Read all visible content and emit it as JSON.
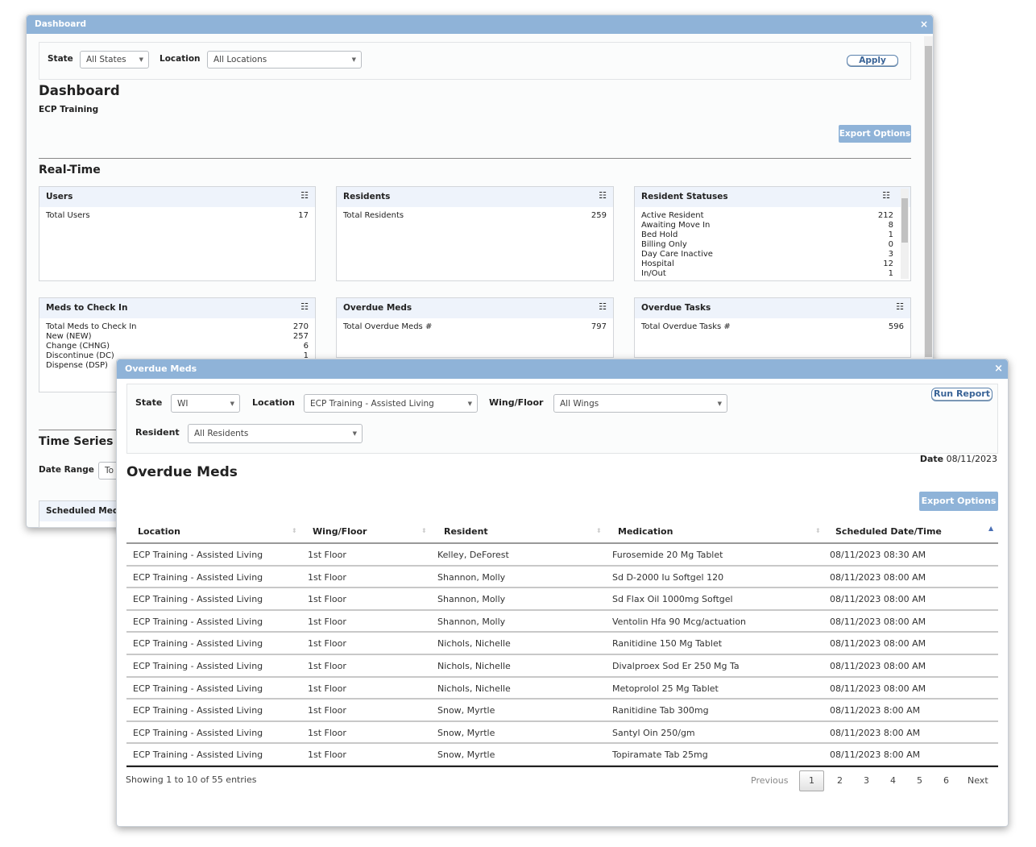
{
  "dashboard": {
    "title": "Dashboard",
    "close": "×",
    "filters": {
      "state_label": "State",
      "state_value": "All States",
      "location_label": "Location",
      "location_value": "All Locations",
      "apply": "Apply"
    },
    "heading": "Dashboard",
    "subheading": "ECP Training",
    "export": "Export Options",
    "realtime": "Real-Time",
    "cards": [
      {
        "title": "Users",
        "rows": [
          {
            "label": "Total Users",
            "value": "17"
          }
        ]
      },
      {
        "title": "Residents",
        "rows": [
          {
            "label": "Total Residents",
            "value": "259"
          }
        ]
      },
      {
        "title": "Resident Statuses",
        "rows": [
          {
            "label": "Active Resident",
            "value": "212"
          },
          {
            "label": "Awaiting Move In",
            "value": "8"
          },
          {
            "label": "Bed Hold",
            "value": "1"
          },
          {
            "label": "Billing Only",
            "value": "0"
          },
          {
            "label": "Day Care Inactive",
            "value": "3"
          },
          {
            "label": "Hospital",
            "value": "12"
          },
          {
            "label": "In/Out",
            "value": "1"
          }
        ]
      },
      {
        "title": "Meds to Check In",
        "rows": [
          {
            "label": "Total Meds to Check In",
            "value": "270"
          },
          {
            "label": "New (NEW)",
            "value": "257"
          },
          {
            "label": "Change (CHNG)",
            "value": "6"
          },
          {
            "label": "Discontinue (DC)",
            "value": "1"
          },
          {
            "label": "Dispense (DSP)",
            "value": ""
          }
        ]
      },
      {
        "title": "Overdue Meds",
        "rows": [
          {
            "label": "Total Overdue Meds #",
            "value": "797"
          }
        ]
      },
      {
        "title": "Overdue Tasks",
        "rows": [
          {
            "label": "Total Overdue Tasks #",
            "value": "596"
          }
        ]
      }
    ],
    "time_series": "Time Series",
    "date_range_label": "Date Range",
    "date_range_value": "To",
    "scheduled_card": "Scheduled Medi"
  },
  "modal": {
    "title": "Overdue Meds",
    "close": "×",
    "filters": {
      "state_label": "State",
      "state_value": "WI",
      "location_label": "Location",
      "location_value": "ECP Training - Assisted Living",
      "wing_label": "Wing/Floor",
      "wing_value": "All Wings",
      "resident_label": "Resident",
      "resident_value": "All Residents",
      "run": "Run Report"
    },
    "date_label": "Date",
    "date_value": "08/11/2023",
    "heading": "Overdue Meds",
    "export": "Export Options",
    "columns": [
      "Location",
      "Wing/Floor",
      "Resident",
      "Medication",
      "Scheduled Date/Time"
    ],
    "rows": [
      [
        "ECP Training - Assisted Living",
        "1st Floor",
        "Kelley, DeForest",
        "Furosemide 20 Mg Tablet",
        "08/11/2023 08:30 AM"
      ],
      [
        "ECP Training - Assisted Living",
        "1st Floor",
        "Shannon, Molly",
        "Sd D-2000 Iu Softgel 120",
        "08/11/2023 08:00 AM"
      ],
      [
        "ECP Training - Assisted Living",
        "1st Floor",
        "Shannon, Molly",
        "Sd Flax Oil 1000mg Softgel",
        "08/11/2023 08:00 AM"
      ],
      [
        "ECP Training - Assisted Living",
        "1st Floor",
        "Shannon, Molly",
        "Ventolin Hfa 90 Mcg/actuation",
        "08/11/2023 08:00 AM"
      ],
      [
        "ECP Training - Assisted Living",
        "1st Floor",
        "Nichols, Nichelle",
        "Ranitidine 150 Mg Tablet",
        "08/11/2023 08:00 AM"
      ],
      [
        "ECP Training - Assisted Living",
        "1st Floor",
        "Nichols, Nichelle",
        "Divalproex Sod Er 250 Mg Ta",
        "08/11/2023 08:00 AM"
      ],
      [
        "ECP Training - Assisted Living",
        "1st Floor",
        "Nichols, Nichelle",
        "Metoprolol 25 Mg Tablet",
        "08/11/2023 08:00 AM"
      ],
      [
        "ECP Training - Assisted Living",
        "1st Floor",
        "Snow, Myrtle",
        "Ranitidine Tab 300mg",
        "08/11/2023 8:00 AM"
      ],
      [
        "ECP Training - Assisted Living",
        "1st Floor",
        "Snow, Myrtle",
        "Santyl Oin 250/gm",
        "08/11/2023 8:00 AM"
      ],
      [
        "ECP Training - Assisted Living",
        "1st Floor",
        "Snow, Myrtle",
        "Topiramate Tab 25mg",
        "08/11/2023 8:00 AM"
      ]
    ],
    "info": "Showing 1 to 10 of 55 entries",
    "pagination": {
      "previous": "Previous",
      "pages": [
        "1",
        "2",
        "3",
        "4",
        "5",
        "6"
      ],
      "next": "Next",
      "current": "1"
    }
  }
}
